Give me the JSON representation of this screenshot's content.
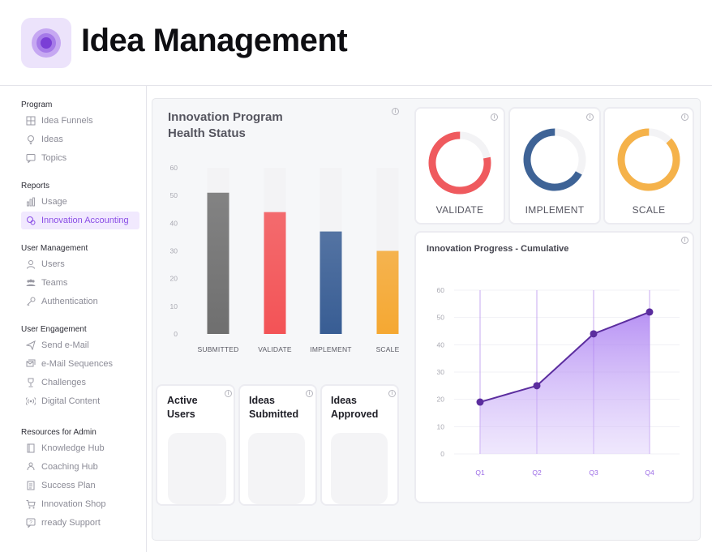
{
  "app": {
    "title": "Idea Management"
  },
  "sidebar": {
    "sections": [
      {
        "title": "Program",
        "items": [
          {
            "label": "Idea Funnels",
            "icon": "grid-icon"
          },
          {
            "label": "Ideas",
            "icon": "lightbulb-icon"
          },
          {
            "label": "Topics",
            "icon": "chat-icon"
          }
        ]
      },
      {
        "title": "Reports",
        "items": [
          {
            "label": "Usage",
            "icon": "bar-chart-icon"
          },
          {
            "label": "Innovation Accounting",
            "icon": "accounting-icon",
            "active": true
          }
        ]
      },
      {
        "title": "User Management",
        "items": [
          {
            "label": "Users",
            "icon": "user-icon"
          },
          {
            "label": "Teams",
            "icon": "team-icon"
          },
          {
            "label": "Authentication",
            "icon": "key-icon"
          }
        ]
      },
      {
        "title": "User Engagement",
        "items": [
          {
            "label": "Send e-Mail",
            "icon": "send-icon"
          },
          {
            "label": "e-Mail Sequences",
            "icon": "mail-sequence-icon"
          },
          {
            "label": "Challenges",
            "icon": "trophy-icon"
          },
          {
            "label": "Digital Content",
            "icon": "broadcast-icon"
          }
        ]
      },
      {
        "title": "Resources for Admin",
        "items": [
          {
            "label": "Knowledge Hub",
            "icon": "book-icon"
          },
          {
            "label": "Coaching Hub",
            "icon": "coaching-icon"
          },
          {
            "label": "Success Plan",
            "icon": "document-icon"
          },
          {
            "label": "Innovation Shop",
            "icon": "cart-icon"
          },
          {
            "label": "rready Support",
            "icon": "help-chat-icon"
          }
        ]
      }
    ]
  },
  "health_card": {
    "title": "Innovation Program Health Status",
    "info_icon": "info-icon"
  },
  "donuts": [
    {
      "label": "VALIDATE",
      "color": "#ef5a5e",
      "fraction": 0.78
    },
    {
      "label": "IMPLEMENT",
      "color": "#3e6396",
      "fraction": 0.67
    },
    {
      "label": "SCALE",
      "color": "#f5b24a",
      "fraction": 0.87
    }
  ],
  "stats": [
    {
      "title_line1": "Active",
      "title_line2": "Users"
    },
    {
      "title_line1": "Ideas",
      "title_line2": "Submitted"
    },
    {
      "title_line1": "Ideas",
      "title_line2": "Approved"
    }
  ],
  "progress_card": {
    "title": "Innovation Progress - Cumulative"
  },
  "chart_data": [
    {
      "type": "bar",
      "title": "Innovation Program Health Status",
      "categories": [
        "SUBMITTED",
        "VALIDATE",
        "IMPLEMENT",
        "SCALE"
      ],
      "values": [
        51,
        44,
        37,
        30
      ],
      "colors": [
        "#6f6f6f",
        "#f35356",
        "#385d94",
        "#f5a832"
      ],
      "ylim": [
        0,
        60
      ],
      "yticks": [
        0,
        10,
        20,
        30,
        40,
        50,
        60
      ],
      "grid": false
    },
    {
      "type": "area",
      "title": "Innovation Progress - Cumulative",
      "categories": [
        "Q1",
        "Q2",
        "Q3",
        "Q4"
      ],
      "values": [
        19,
        25,
        44,
        52
      ],
      "ylim": [
        0,
        60
      ],
      "yticks": [
        0,
        10,
        20,
        30,
        40,
        50,
        60
      ],
      "color": "#8a4ee6",
      "grid": true
    }
  ]
}
